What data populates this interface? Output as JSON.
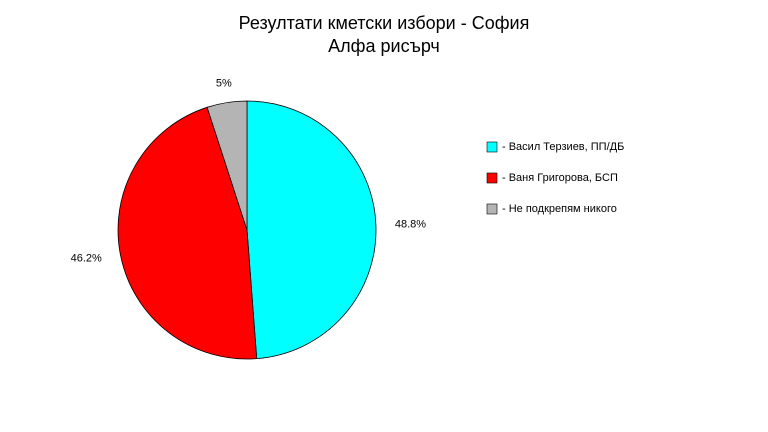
{
  "chart_data": {
    "type": "pie",
    "title": "Резултати кметски избори - София",
    "subtitle": "Алфа рисърч",
    "categories": [
      "- Васил Терзиев, ПП/ДБ",
      "- Ваня Григорова, БСП",
      "- Не подкрепям никого"
    ],
    "values": [
      48.8,
      46.2,
      5
    ],
    "value_labels": [
      "48.8%",
      "46.2%",
      "5%"
    ],
    "colors": [
      "#00ffff",
      "#ff0000",
      "#b4b4b4"
    ]
  }
}
